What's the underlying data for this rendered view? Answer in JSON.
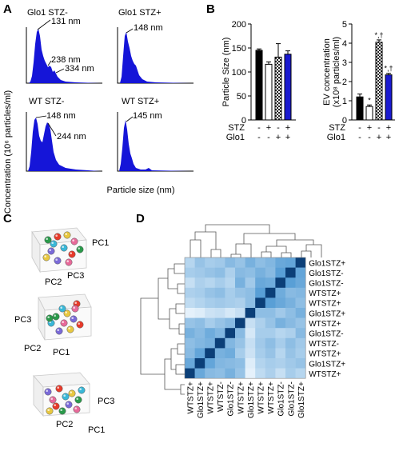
{
  "panels": {
    "A": "A",
    "B": "B",
    "C": "C",
    "D": "D"
  },
  "nta": {
    "ylabel": "Concentration (10⁶ particles/ml)",
    "xlabel": "Particle size (nm)",
    "subplots": [
      {
        "title": "Glo1 STZ-",
        "peaks": [
          "131 nm",
          "238 nm",
          "334 nm"
        ]
      },
      {
        "title": "Glo1 STZ+",
        "peaks": [
          "148 nm"
        ]
      },
      {
        "title": "WT STZ-",
        "peaks": [
          "148 nm",
          "244 nm"
        ]
      },
      {
        "title": "WT STZ+",
        "peaks": [
          "145 nm"
        ]
      }
    ]
  },
  "chart_data": [
    {
      "type": "bar",
      "categories": [
        "STZ- Glo1-",
        "STZ+ Glo1-",
        "STZ- Glo1+",
        "STZ+ Glo1+"
      ],
      "values": [
        145,
        116,
        131,
        137
      ],
      "errors": [
        3,
        5,
        28,
        7
      ],
      "ylabel": "Particle Size (nm)",
      "ylim": [
        0,
        200
      ],
      "yticks": [
        "0",
        "50",
        "100",
        "150",
        "200"
      ],
      "factor_rows": [
        {
          "name": "STZ",
          "signs": [
            "-",
            "+",
            "-",
            "+"
          ]
        },
        {
          "name": "Glo1",
          "signs": [
            "-",
            "-",
            "+",
            "+"
          ]
        }
      ]
    },
    {
      "type": "bar",
      "categories": [
        "STZ- Glo1-",
        "STZ+ Glo1-",
        "STZ- Glo1+",
        "STZ+ Glo1+"
      ],
      "values": [
        1.2,
        0.7,
        4.05,
        2.35
      ],
      "errors": [
        0.15,
        0.08,
        0.12,
        0.08
      ],
      "annotations": [
        "",
        "*",
        "*,†",
        "*,†"
      ],
      "ylabel_line1": "EV concentration",
      "ylabel_line2": "(x10⁸ particles/ml)",
      "ylim": [
        0,
        5
      ],
      "yticks": [
        "0",
        "1",
        "2",
        "3",
        "4",
        "5"
      ],
      "factor_rows": [
        {
          "name": "STZ",
          "signs": [
            "-",
            "+",
            "-",
            "+"
          ]
        },
        {
          "name": "Glo1",
          "signs": [
            "-",
            "-",
            "+",
            "+"
          ]
        }
      ]
    },
    {
      "type": "heatmap",
      "row_labels": [
        "Glo1STZ+",
        "Glo1STZ-",
        "Glo1STZ-",
        "WTSTZ+",
        "WTSTZ+",
        "Glo1STZ+",
        "WTSTZ+",
        "Glo1STZ-",
        "WTSTZ-",
        "WTSTZ+",
        "Glo1STZ+",
        "WTSTZ+"
      ],
      "col_labels": [
        "WTSTZ+",
        "Glo1STZ+",
        "WTSTZ+",
        "WTSTZ-",
        "Glo1STZ-",
        "WTSTZ+",
        "Glo1STZ+",
        "WTSTZ+",
        "WTSTZ+",
        "Glo1STZ-",
        "Glo1STZ-",
        "Glo1STZ+"
      ],
      "values": [
        [
          0.35,
          0.45,
          0.4,
          0.42,
          0.5,
          0.45,
          0.55,
          0.48,
          0.52,
          0.6,
          0.62,
          1.0
        ],
        [
          0.4,
          0.42,
          0.45,
          0.48,
          0.38,
          0.5,
          0.48,
          0.55,
          0.5,
          0.65,
          1.0,
          0.62
        ],
        [
          0.3,
          0.38,
          0.35,
          0.4,
          0.35,
          0.55,
          0.42,
          0.6,
          0.58,
          1.0,
          0.65,
          0.6
        ],
        [
          0.38,
          0.4,
          0.45,
          0.48,
          0.4,
          0.45,
          0.48,
          0.65,
          1.0,
          0.58,
          0.5,
          0.52
        ],
        [
          0.32,
          0.36,
          0.4,
          0.42,
          0.4,
          0.38,
          0.48,
          1.0,
          0.65,
          0.6,
          0.55,
          0.48
        ],
        [
          0.2,
          0.22,
          0.28,
          0.3,
          0.25,
          0.3,
          1.0,
          0.48,
          0.48,
          0.42,
          0.48,
          0.55
        ],
        [
          0.45,
          0.48,
          0.4,
          0.45,
          0.5,
          1.0,
          0.3,
          0.38,
          0.45,
          0.55,
          0.5,
          0.45
        ],
        [
          0.55,
          0.5,
          0.58,
          0.52,
          1.0,
          0.5,
          0.25,
          0.4,
          0.4,
          0.35,
          0.38,
          0.5
        ],
        [
          0.48,
          0.52,
          0.55,
          1.0,
          0.52,
          0.45,
          0.3,
          0.42,
          0.48,
          0.4,
          0.48,
          0.42
        ],
        [
          0.5,
          0.62,
          1.0,
          0.55,
          0.58,
          0.4,
          0.28,
          0.4,
          0.45,
          0.35,
          0.45,
          0.4
        ],
        [
          0.6,
          1.0,
          0.62,
          0.52,
          0.5,
          0.48,
          0.22,
          0.36,
          0.4,
          0.38,
          0.42,
          0.45
        ],
        [
          1.0,
          0.6,
          0.5,
          0.48,
          0.55,
          0.45,
          0.2,
          0.32,
          0.38,
          0.3,
          0.4,
          0.35
        ]
      ]
    }
  ],
  "pca": {
    "plots": [
      {
        "axes": [
          "PC1",
          "PC2",
          "PC3"
        ]
      },
      {
        "axes": [
          "PC3",
          "PC2",
          "PC1"
        ]
      },
      {
        "axes": [
          "PC3",
          "PC2",
          "PC1"
        ]
      }
    ],
    "point_colors": [
      "#e83a2a",
      "#e8c840",
      "#2a9a4a",
      "#7a6ad8",
      "#e86a9a",
      "#3ab8d8"
    ]
  }
}
